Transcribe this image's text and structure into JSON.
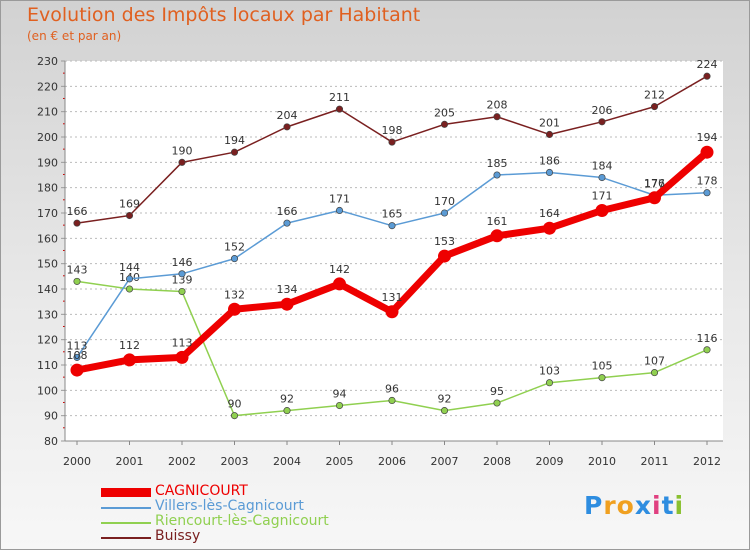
{
  "title": "Evolution des Impôts locaux par Habitant",
  "subtitle": "(en € et par an)",
  "logo": {
    "letters": [
      "P",
      "r",
      "o",
      "x",
      "i",
      "t",
      "i"
    ],
    "colors": [
      "#2e8de0",
      "#f0a020",
      "#f0a020",
      "#2e8de0",
      "#e04080",
      "#2e8de0",
      "#8ac030"
    ]
  },
  "chart_data": {
    "type": "line",
    "x": [
      "2000",
      "2001",
      "2002",
      "2003",
      "2004",
      "2005",
      "2006",
      "2007",
      "2008",
      "2009",
      "2010",
      "2011",
      "2012"
    ],
    "ylim": [
      80,
      230
    ],
    "yticks": [
      80,
      90,
      100,
      110,
      120,
      130,
      140,
      150,
      160,
      170,
      180,
      190,
      200,
      210,
      220,
      230
    ],
    "grid": "horizontal-dashed",
    "legend_position": "bottom-left",
    "series": [
      {
        "name": "CAGNICOURT",
        "color": "#ee0000",
        "emphasis": true,
        "values": [
          108,
          112,
          113,
          132,
          134,
          142,
          131,
          153,
          161,
          164,
          171,
          176,
          194
        ]
      },
      {
        "name": "Villers-lès-Cagnicourt",
        "color": "#5b9bd5",
        "emphasis": false,
        "values": [
          113,
          144,
          146,
          152,
          166,
          171,
          165,
          170,
          185,
          186,
          184,
          177,
          178
        ]
      },
      {
        "name": "Riencourt-lès-Cagnicourt",
        "color": "#90d050",
        "emphasis": false,
        "values": [
          143,
          140,
          139,
          90,
          92,
          94,
          96,
          92,
          95,
          103,
          105,
          107,
          116
        ]
      },
      {
        "name": "Buissy",
        "color": "#7a2020",
        "emphasis": false,
        "values": [
          166,
          169,
          190,
          194,
          204,
          211,
          198,
          205,
          208,
          201,
          206,
          212,
          224
        ]
      }
    ]
  }
}
